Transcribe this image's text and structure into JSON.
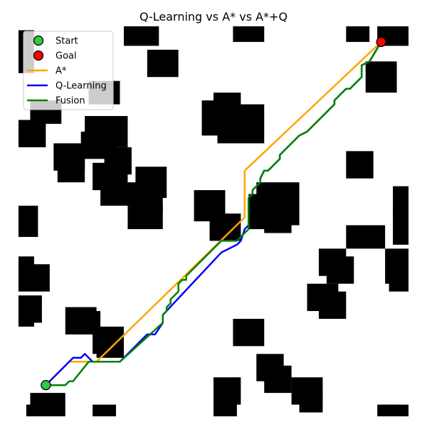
{
  "chart_data": {
    "type": "line",
    "title": "Q-Learning vs A* vs A*+Q",
    "xlabel": "",
    "ylabel": "",
    "grid": false,
    "axes_visible": false,
    "xlim": [
      0,
      100
    ],
    "ylim": [
      100,
      0
    ],
    "legend": {
      "placement": "top-left",
      "entries": [
        {
          "label": "Start",
          "kind": "marker",
          "color": "#2ecc40"
        },
        {
          "label": "Goal",
          "kind": "marker",
          "color": "#ff0000"
        },
        {
          "label": "A*",
          "kind": "line",
          "color": "#ffa500"
        },
        {
          "label": "Q-Learning",
          "kind": "line",
          "color": "#0000ff"
        },
        {
          "label": "Fusion",
          "kind": "line",
          "color": "#008000"
        }
      ]
    },
    "start": {
      "x": 7,
      "y": 92
    },
    "goal": {
      "x": 93,
      "y": 4
    },
    "obstacles": [
      [
        0,
        1,
        4,
        12
      ],
      [
        27,
        0,
        36,
        5
      ],
      [
        55,
        0,
        63,
        4
      ],
      [
        84,
        0,
        90,
        4
      ],
      [
        92,
        0,
        100,
        5
      ],
      [
        33,
        6,
        41,
        13
      ],
      [
        18,
        14,
        26,
        20
      ],
      [
        89,
        9,
        97,
        17
      ],
      [
        3,
        19,
        11,
        25
      ],
      [
        0,
        24,
        7,
        31
      ],
      [
        17,
        23,
        28,
        31
      ],
      [
        16,
        27,
        25,
        34
      ],
      [
        50,
        17,
        57,
        25
      ],
      [
        47,
        19,
        55,
        28
      ],
      [
        51,
        20,
        63,
        30
      ],
      [
        9,
        30,
        17,
        37
      ],
      [
        10,
        33,
        17,
        40
      ],
      [
        22,
        31,
        29,
        38
      ],
      [
        19,
        35,
        28,
        42
      ],
      [
        30,
        36,
        38,
        44
      ],
      [
        21,
        40,
        33,
        46
      ],
      [
        29,
        41,
        37,
        48
      ],
      [
        28,
        46,
        37,
        52
      ],
      [
        84,
        32,
        91,
        39
      ],
      [
        45,
        42,
        53,
        50
      ],
      [
        49,
        48,
        57,
        55
      ],
      [
        61,
        40,
        72,
        51
      ],
      [
        59,
        43,
        67,
        52
      ],
      [
        63,
        45,
        70,
        53
      ],
      [
        0,
        46,
        5,
        54
      ],
      [
        84,
        51,
        94,
        57
      ],
      [
        96,
        41,
        100,
        49
      ],
      [
        96,
        47,
        100,
        56
      ],
      [
        77,
        57,
        84,
        64
      ],
      [
        79,
        59,
        86,
        66
      ],
      [
        94,
        57,
        100,
        66
      ],
      [
        95,
        63,
        100,
        68
      ],
      [
        0,
        59,
        4,
        66
      ],
      [
        0,
        61,
        8,
        68
      ],
      [
        0,
        69,
        6,
        76
      ],
      [
        0,
        72,
        4,
        77
      ],
      [
        74,
        66,
        82,
        73
      ],
      [
        77,
        68,
        84,
        75
      ],
      [
        12,
        72,
        20,
        79
      ],
      [
        14,
        73,
        21,
        79
      ],
      [
        19,
        77,
        27,
        84
      ],
      [
        20,
        81,
        27,
        85
      ],
      [
        55,
        75,
        63,
        82
      ],
      [
        61,
        84,
        68,
        91
      ],
      [
        63,
        87,
        70,
        94
      ],
      [
        50,
        90,
        57,
        97
      ],
      [
        50,
        94,
        56,
        100
      ],
      [
        70,
        90,
        78,
        97
      ],
      [
        72,
        93,
        78,
        99
      ],
      [
        3,
        94,
        12,
        100
      ],
      [
        2,
        97,
        11,
        100
      ],
      [
        19,
        97,
        25,
        100
      ],
      [
        93,
        97,
        100,
        100
      ],
      [
        92,
        97,
        97,
        100
      ]
    ],
    "series": [
      {
        "name": "A*",
        "color": "#ffa500",
        "points": [
          [
            7,
            92
          ],
          [
            13,
            86
          ],
          [
            20,
            86
          ],
          [
            58,
            49
          ],
          [
            58,
            37
          ],
          [
            93,
            4
          ]
        ]
      },
      {
        "name": "Q-Learning",
        "color": "#0000ff",
        "points": [
          [
            7,
            92
          ],
          [
            8,
            91
          ],
          [
            14,
            85
          ],
          [
            16,
            85
          ],
          [
            17,
            84
          ],
          [
            19,
            86
          ],
          [
            26,
            86
          ],
          [
            33,
            79
          ],
          [
            35,
            79
          ],
          [
            37,
            76
          ],
          [
            37,
            74
          ],
          [
            52,
            58
          ],
          [
            56,
            56
          ],
          [
            57,
            55
          ],
          [
            58,
            52
          ],
          [
            59,
            51
          ],
          [
            59,
            44
          ],
          [
            60,
            43
          ],
          [
            60,
            42
          ],
          [
            62,
            40
          ],
          [
            62,
            39
          ],
          [
            63,
            37
          ],
          [
            64,
            37
          ],
          [
            67,
            34
          ],
          [
            67,
            33
          ],
          [
            71,
            29
          ],
          [
            72,
            28
          ],
          [
            74,
            27
          ],
          [
            75,
            26
          ],
          [
            80,
            21
          ],
          [
            81,
            20
          ],
          [
            81,
            19
          ],
          [
            84,
            16
          ],
          [
            85,
            16
          ],
          [
            88,
            13
          ],
          [
            88,
            10
          ],
          [
            90,
            9
          ],
          [
            93,
            4
          ]
        ]
      },
      {
        "name": "Fusion",
        "color": "#008000",
        "points": [
          [
            7,
            92
          ],
          [
            12,
            92
          ],
          [
            13,
            91
          ],
          [
            14,
            91
          ],
          [
            18,
            86
          ],
          [
            26,
            86
          ],
          [
            37,
            76
          ],
          [
            37,
            74
          ],
          [
            38,
            73
          ],
          [
            38,
            72
          ],
          [
            39,
            71
          ],
          [
            39,
            70
          ],
          [
            41,
            68
          ],
          [
            41,
            66
          ],
          [
            42,
            65
          ],
          [
            43,
            65
          ],
          [
            43,
            64
          ],
          [
            52,
            55
          ],
          [
            56,
            55
          ],
          [
            57,
            54
          ],
          [
            58,
            53
          ],
          [
            59,
            52
          ],
          [
            59,
            44
          ],
          [
            60,
            43
          ],
          [
            60,
            42
          ],
          [
            62,
            40
          ],
          [
            62,
            39
          ],
          [
            63,
            37
          ],
          [
            64,
            37
          ],
          [
            67,
            34
          ],
          [
            67,
            33
          ],
          [
            71,
            29
          ],
          [
            72,
            28
          ],
          [
            74,
            27
          ],
          [
            75,
            26
          ],
          [
            80,
            21
          ],
          [
            81,
            20
          ],
          [
            81,
            19
          ],
          [
            84,
            16
          ],
          [
            85,
            16
          ],
          [
            88,
            13
          ],
          [
            88,
            10
          ],
          [
            90,
            9
          ],
          [
            93,
            4
          ]
        ]
      }
    ]
  }
}
